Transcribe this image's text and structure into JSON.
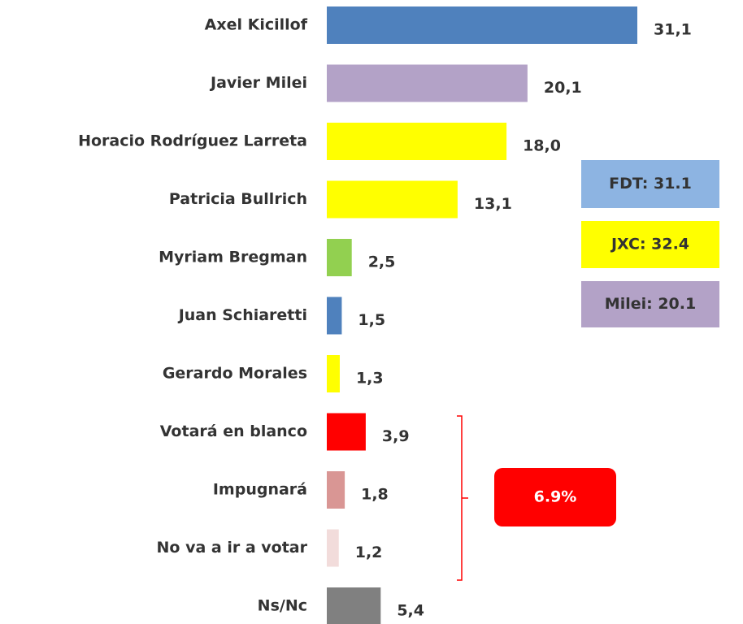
{
  "chart_data": {
    "type": "bar",
    "orientation": "horizontal",
    "categories": [
      "Axel Kicillof",
      "Javier Milei",
      "Horacio Rodríguez Larreta",
      "Patricia Bullrich",
      "Myriam Bregman",
      "Juan Schiaretti",
      "Gerardo Morales",
      "Votará en blanco",
      "Impugnará",
      "No va a ir a votar",
      "Ns/Nc"
    ],
    "values": [
      31.1,
      20.1,
      18.0,
      13.1,
      2.5,
      1.5,
      1.3,
      3.9,
      1.8,
      1.2,
      5.4
    ],
    "value_labels": [
      "31,1",
      "20,1",
      "18,0",
      "13,1",
      "2,5",
      "1,5",
      "1,3",
      "3,9",
      "1,8",
      "1,2",
      "5,4"
    ],
    "colors": [
      "#4f81bd",
      "#b3a2c7",
      "#ffff00",
      "#ffff00",
      "#92d050",
      "#4f81bd",
      "#ffff00",
      "#ff0000",
      "#d99694",
      "#f2dcdb",
      "#808080"
    ],
    "annotations": [
      {
        "text": "FDT: 31.1",
        "color": "#8db4e2"
      },
      {
        "text": "JXC: 32.4",
        "color": "#ffff00"
      },
      {
        "text": "Milei: 20.1",
        "color": "#b3a2c7"
      },
      {
        "text": "6.9%",
        "color": "#ff0000"
      }
    ]
  }
}
